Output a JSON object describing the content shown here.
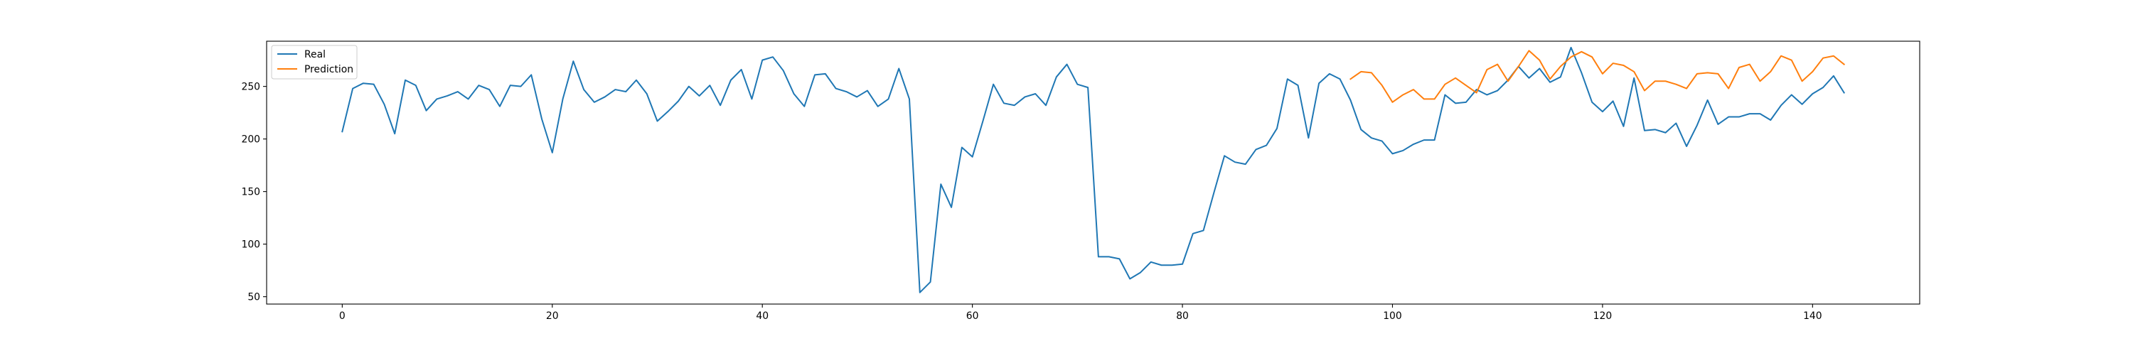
{
  "chart_data": {
    "type": "line",
    "title": "",
    "xlabel": "",
    "ylabel": "",
    "xlim": [
      -7.2,
      150.2
    ],
    "ylim": [
      43,
      293
    ],
    "x_ticks": [
      0,
      20,
      40,
      60,
      80,
      100,
      120,
      140
    ],
    "y_ticks": [
      50,
      100,
      150,
      200,
      250
    ],
    "grid": false,
    "legend_position": "top-left",
    "series": [
      {
        "name": "Real",
        "color": "#1f77b4",
        "x_start": 0,
        "values": [
          207,
          248,
          253,
          252,
          233,
          205,
          256,
          251,
          227,
          238,
          241,
          245,
          238,
          251,
          247,
          231,
          251,
          250,
          261,
          219,
          187,
          238,
          274,
          247,
          235,
          240,
          247,
          245,
          256,
          243,
          217,
          226,
          236,
          250,
          241,
          251,
          232,
          256,
          266,
          238,
          275,
          278,
          265,
          243,
          231,
          261,
          262,
          248,
          245,
          240,
          246,
          231,
          238,
          267,
          238,
          54,
          64,
          157,
          135,
          192,
          183,
          217,
          252,
          234,
          232,
          240,
          243,
          232,
          259,
          271,
          252,
          249,
          88,
          88,
          86,
          67,
          73,
          83,
          80,
          80,
          81,
          110,
          113,
          149,
          184,
          178,
          176,
          190,
          194,
          210,
          257,
          251,
          201,
          253,
          262,
          257,
          237,
          209,
          201,
          198,
          186,
          189,
          195,
          199,
          199,
          242,
          234,
          235,
          247,
          242,
          246,
          256,
          269,
          258,
          267,
          254,
          259,
          287,
          263,
          235,
          226,
          236,
          212,
          258,
          208,
          209,
          206,
          215,
          193,
          213,
          237,
          214,
          221,
          221,
          224,
          224,
          218,
          232,
          242,
          233,
          243,
          249,
          260,
          244
        ]
      },
      {
        "name": "Prediction",
        "color": "#ff7f0e",
        "x_start": 96,
        "values": [
          257,
          264,
          263,
          251,
          235,
          242,
          247,
          238,
          238,
          252,
          258,
          251,
          244,
          266,
          271,
          255,
          269,
          284,
          275,
          257,
          269,
          278,
          283,
          278,
          262,
          272,
          270,
          264,
          246,
          255,
          255,
          252,
          248,
          262,
          263,
          262,
          248,
          268,
          271,
          255,
          264,
          279,
          275,
          255,
          264,
          277,
          279,
          271
        ]
      }
    ]
  }
}
